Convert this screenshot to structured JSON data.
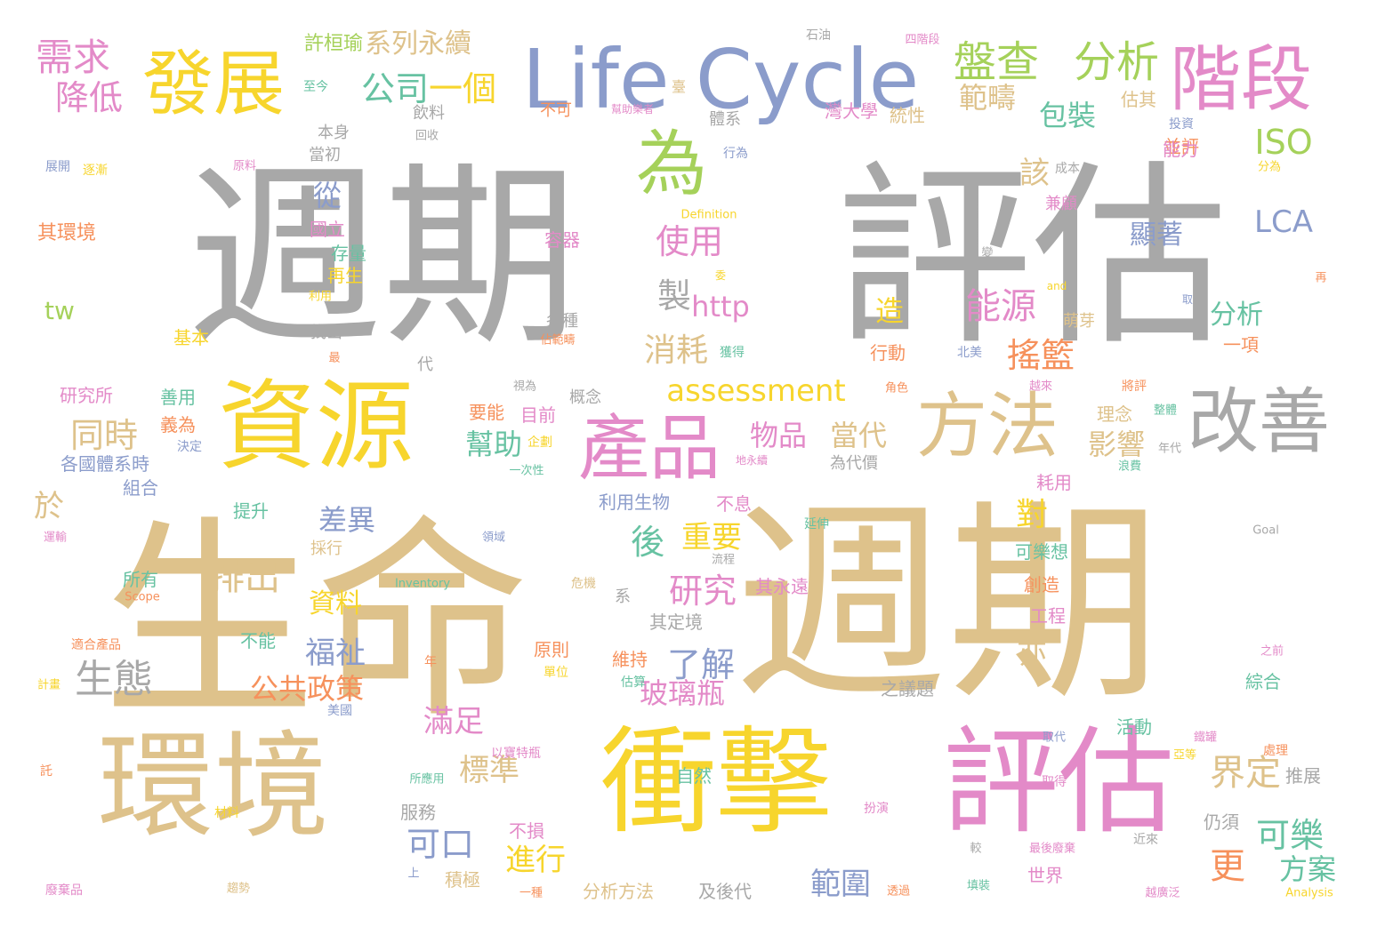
{
  "palette": {
    "tan": "#dec28b",
    "grey": "#a8a8a8",
    "yellow": "#f7d52d",
    "pink": "#e38ac8",
    "blue": "#8b9ccb",
    "green": "#a5d15a",
    "teal": "#67c2a2",
    "orange": "#f6915c"
  },
  "words": [
    {
      "text": "週期",
      "color": "grey",
      "weight": 1.0
    },
    {
      "text": "評估",
      "color": "grey",
      "weight": 1.0
    },
    {
      "text": "生命",
      "color": "tan",
      "weight": 0.98
    },
    {
      "text": "週期",
      "color": "tan",
      "weight": 0.95
    },
    {
      "text": "Life Cycle",
      "color": "blue",
      "weight": 0.55
    },
    {
      "text": "資源",
      "color": "yellow",
      "weight": 0.5
    },
    {
      "text": "環境",
      "color": "tan",
      "weight": 0.62
    },
    {
      "text": "衝擊",
      "color": "yellow",
      "weight": 0.6
    },
    {
      "text": "評估",
      "color": "pink",
      "weight": 0.6
    },
    {
      "text": "產品",
      "color": "pink",
      "weight": 0.35
    },
    {
      "text": "發展",
      "color": "yellow",
      "weight": 0.3
    },
    {
      "text": "階段",
      "color": "pink",
      "weight": 0.3
    },
    {
      "text": "方法",
      "color": "tan",
      "weight": 0.3
    },
    {
      "text": "改善",
      "color": "grey",
      "weight": 0.3
    },
    {
      "text": "為",
      "color": "green",
      "weight": 0.3
    },
    {
      "text": "盤查",
      "color": "green",
      "weight": 0.18
    },
    {
      "text": "分析",
      "color": "green",
      "weight": 0.18
    },
    {
      "text": "需求",
      "color": "pink",
      "weight": 0.16
    },
    {
      "text": "降低",
      "color": "pink",
      "weight": 0.14
    },
    {
      "text": "公司",
      "color": "teal",
      "weight": 0.14
    },
    {
      "text": "一個",
      "color": "yellow",
      "weight": 0.14
    },
    {
      "text": "系列永續",
      "color": "tan",
      "weight": 0.1
    },
    {
      "text": "許桓瑜",
      "color": "green",
      "weight": 0.07
    },
    {
      "text": "範疇",
      "color": "tan",
      "weight": 0.12
    },
    {
      "text": "包裝",
      "color": "teal",
      "weight": 0.12
    },
    {
      "text": "ISO",
      "color": "green",
      "weight": 0.14
    },
    {
      "text": "LCA",
      "color": "blue",
      "weight": 0.12
    },
    {
      "text": "該",
      "color": "tan",
      "weight": 0.12
    },
    {
      "text": "從",
      "color": "blue",
      "weight": 0.12
    },
    {
      "text": "使用",
      "color": "pink",
      "weight": 0.14
    },
    {
      "text": "製",
      "color": "grey",
      "weight": 0.14
    },
    {
      "text": "http",
      "color": "pink",
      "weight": 0.12
    },
    {
      "text": "消耗",
      "color": "tan",
      "weight": 0.14
    },
    {
      "text": "能源",
      "color": "pink",
      "weight": 0.16
    },
    {
      "text": "搖籃",
      "color": "orange",
      "weight": 0.14
    },
    {
      "text": "assessment",
      "color": "yellow",
      "weight": 0.12
    },
    {
      "text": "物品",
      "color": "pink",
      "weight": 0.12
    },
    {
      "text": "當代",
      "color": "tan",
      "weight": 0.12
    },
    {
      "text": "影響",
      "color": "tan",
      "weight": 0.12
    },
    {
      "text": "幫助",
      "color": "teal",
      "weight": 0.12
    },
    {
      "text": "同時",
      "color": "tan",
      "weight": 0.14
    },
    {
      "text": "生態",
      "color": "grey",
      "weight": 0.16
    },
    {
      "text": "差異",
      "color": "blue",
      "weight": 0.12
    },
    {
      "text": "排出",
      "color": "tan",
      "weight": 0.14
    },
    {
      "text": "後",
      "color": "teal",
      "weight": 0.12
    },
    {
      "text": "重要",
      "color": "yellow",
      "weight": 0.12
    },
    {
      "text": "研究",
      "color": "pink",
      "weight": 0.14
    },
    {
      "text": "了解",
      "color": "blue",
      "weight": 0.14
    },
    {
      "text": "福祉",
      "color": "blue",
      "weight": 0.12
    },
    {
      "text": "公共政策",
      "color": "orange",
      "weight": 0.12
    },
    {
      "text": "玻璃瓶",
      "color": "pink",
      "weight": 0.12
    },
    {
      "text": "資料",
      "color": "yellow",
      "weight": 0.1
    },
    {
      "text": "滿足",
      "color": "pink",
      "weight": 0.12
    },
    {
      "text": "標準",
      "color": "tan",
      "weight": 0.12
    },
    {
      "text": "可口",
      "color": "blue",
      "weight": 0.12
    },
    {
      "text": "進行",
      "color": "yellow",
      "weight": 0.12
    },
    {
      "text": "範圍",
      "color": "blue",
      "weight": 0.12
    },
    {
      "text": "界定",
      "color": "tan",
      "weight": 0.14
    },
    {
      "text": "可樂",
      "color": "teal",
      "weight": 0.12
    },
    {
      "text": "方案",
      "color": "teal",
      "weight": 0.12
    },
    {
      "text": "更",
      "color": "orange",
      "weight": 0.14
    },
    {
      "text": "對",
      "color": "yellow",
      "weight": 0.12
    },
    {
      "text": "於",
      "color": "tan",
      "weight": 0.12
    },
    {
      "text": "亦",
      "color": "tan",
      "weight": 0.12
    },
    {
      "text": "造",
      "color": "yellow",
      "weight": 0.12
    },
    {
      "text": "顯著",
      "color": "blue",
      "weight": 0.1
    },
    {
      "text": "分析",
      "color": "teal",
      "weight": 0.1
    },
    {
      "text": "tw",
      "color": "green",
      "weight": 0.09
    },
    {
      "text": "其環境",
      "color": "orange",
      "weight": 0.07
    },
    {
      "text": "本身",
      "color": "grey",
      "weight": 0.06
    },
    {
      "text": "當初",
      "color": "grey",
      "weight": 0.06
    },
    {
      "text": "飲料",
      "color": "grey",
      "weight": 0.06
    },
    {
      "text": "至今",
      "color": "teal",
      "weight": 0.05
    },
    {
      "text": "回收",
      "color": "grey",
      "weight": 0.04
    },
    {
      "text": "體系",
      "color": "grey",
      "weight": 0.06
    },
    {
      "text": "灣大學",
      "color": "pink",
      "weight": 0.06
    },
    {
      "text": "統性",
      "color": "tan",
      "weight": 0.06
    },
    {
      "text": "估其",
      "color": "tan",
      "weight": 0.06
    },
    {
      "text": "不可",
      "color": "orange",
      "weight": 0.06
    },
    {
      "text": "幫助樂者",
      "color": "pink",
      "weight": 0.04
    },
    {
      "text": "臺",
      "color": "tan",
      "weight": 0.05
    },
    {
      "text": "石油",
      "color": "grey",
      "weight": 0.05
    },
    {
      "text": "四階段",
      "color": "pink",
      "weight": 0.04
    },
    {
      "text": "投資",
      "color": "blue",
      "weight": 0.05
    },
    {
      "text": "並評",
      "color": "orange",
      "weight": 0.06
    },
    {
      "text": "能力",
      "color": "pink",
      "weight": 0.06
    },
    {
      "text": "成本",
      "color": "grey",
      "weight": 0.05
    },
    {
      "text": "分為",
      "color": "yellow",
      "weight": 0.04
    },
    {
      "text": "行為",
      "color": "blue",
      "weight": 0.05
    },
    {
      "text": "兼顧",
      "color": "pink",
      "weight": 0.06
    },
    {
      "text": "Definition",
      "color": "yellow",
      "weight": 0.04
    },
    {
      "text": "展開",
      "color": "blue",
      "weight": 0.04
    },
    {
      "text": "逐漸",
      "color": "yellow",
      "weight": 0.04
    },
    {
      "text": "原料",
      "color": "pink",
      "weight": 0.04
    },
    {
      "text": "國立",
      "color": "pink",
      "weight": 0.06
    },
    {
      "text": "容器",
      "color": "pink",
      "weight": 0.06
    },
    {
      "text": "存量",
      "color": "teal",
      "weight": 0.06
    },
    {
      "text": "再生",
      "color": "yellow",
      "weight": 0.06
    },
    {
      "text": "利用",
      "color": "yellow",
      "weight": 0.04
    },
    {
      "text": "基本",
      "color": "yellow",
      "weight": 0.05
    },
    {
      "text": "找出",
      "color": "grey",
      "weight": 0.05
    },
    {
      "text": "最",
      "color": "orange",
      "weight": 0.04
    },
    {
      "text": "各種",
      "color": "grey",
      "weight": 0.05
    },
    {
      "text": "佔範疇",
      "color": "orange",
      "weight": 0.04
    },
    {
      "text": "獲得",
      "color": "teal",
      "weight": 0.04
    },
    {
      "text": "行動",
      "color": "orange",
      "weight": 0.06
    },
    {
      "text": "北美",
      "color": "blue",
      "weight": 0.04
    },
    {
      "text": "萌芽",
      "color": "tan",
      "weight": 0.06
    },
    {
      "text": "一項",
      "color": "orange",
      "weight": 0.05
    },
    {
      "text": "and",
      "color": "yellow",
      "weight": 0.03
    },
    {
      "text": "取",
      "color": "blue",
      "weight": 0.03
    },
    {
      "text": "再",
      "color": "orange",
      "weight": 0.03
    },
    {
      "text": "變",
      "color": "grey",
      "weight": 0.03
    },
    {
      "text": "委",
      "color": "yellow",
      "weight": 0.03
    },
    {
      "text": "研究所",
      "color": "pink",
      "weight": 0.06
    },
    {
      "text": "善用",
      "color": "teal",
      "weight": 0.06
    },
    {
      "text": "義為",
      "color": "orange",
      "weight": 0.06
    },
    {
      "text": "決定",
      "color": "blue",
      "weight": 0.04
    },
    {
      "text": "代",
      "color": "grey",
      "weight": 0.04
    },
    {
      "text": "視為",
      "color": "grey",
      "weight": 0.04
    },
    {
      "text": "概念",
      "color": "grey",
      "weight": 0.05
    },
    {
      "text": "角色",
      "color": "orange",
      "weight": 0.04
    },
    {
      "text": "越來",
      "color": "pink",
      "weight": 0.04
    },
    {
      "text": "將評",
      "color": "orange",
      "weight": 0.04
    },
    {
      "text": "理念",
      "color": "tan",
      "weight": 0.06
    },
    {
      "text": "整體",
      "color": "teal",
      "weight": 0.04
    },
    {
      "text": "要能",
      "color": "orange",
      "weight": 0.06
    },
    {
      "text": "目前",
      "color": "pink",
      "weight": 0.06
    },
    {
      "text": "企劃",
      "color": "yellow",
      "weight": 0.04
    },
    {
      "text": "地永續",
      "color": "pink",
      "weight": 0.03
    },
    {
      "text": "為代價",
      "color": "grey",
      "weight": 0.05
    },
    {
      "text": "年代",
      "color": "grey",
      "weight": 0.04
    },
    {
      "text": "浪費",
      "color": "teal",
      "weight": 0.04
    },
    {
      "text": "各國體系時",
      "color": "blue",
      "weight": 0.06
    },
    {
      "text": "組合",
      "color": "blue",
      "weight": 0.06
    },
    {
      "text": "一次性",
      "color": "teal",
      "weight": 0.04
    },
    {
      "text": "不息",
      "color": "pink",
      "weight": 0.06
    },
    {
      "text": "耗用",
      "color": "pink",
      "weight": 0.06
    },
    {
      "text": "利用生物",
      "color": "blue",
      "weight": 0.06
    },
    {
      "text": "提升",
      "color": "teal",
      "weight": 0.06
    },
    {
      "text": "運輸",
      "color": "pink",
      "weight": 0.04
    },
    {
      "text": "延伸",
      "color": "teal",
      "weight": 0.04
    },
    {
      "text": "領域",
      "color": "blue",
      "weight": 0.04
    },
    {
      "text": "Goal",
      "color": "grey",
      "weight": 0.04
    },
    {
      "text": "採行",
      "color": "tan",
      "weight": 0.05
    },
    {
      "text": "流程",
      "color": "grey",
      "weight": 0.04
    },
    {
      "text": "可樂想",
      "color": "teal",
      "weight": 0.06
    },
    {
      "text": "所有",
      "color": "teal",
      "weight": 0.06
    },
    {
      "text": "Inventory",
      "color": "teal",
      "weight": 0.04
    },
    {
      "text": "危機",
      "color": "tan",
      "weight": 0.04
    },
    {
      "text": "其永遠",
      "color": "pink",
      "weight": 0.06
    },
    {
      "text": "Scope",
      "color": "orange",
      "weight": 0.04
    },
    {
      "text": "系",
      "color": "grey",
      "weight": 0.05
    },
    {
      "text": "創造",
      "color": "orange",
      "weight": 0.06
    },
    {
      "text": "其定境",
      "color": "grey",
      "weight": 0.06
    },
    {
      "text": "工程",
      "color": "pink",
      "weight": 0.06
    },
    {
      "text": "適合產品",
      "color": "orange",
      "weight": 0.05
    },
    {
      "text": "不能",
      "color": "teal",
      "weight": 0.06
    },
    {
      "text": "原則",
      "color": "orange",
      "weight": 0.06
    },
    {
      "text": "維持",
      "color": "orange",
      "weight": 0.06
    },
    {
      "text": "年",
      "color": "orange",
      "weight": 0.04
    },
    {
      "text": "單位",
      "color": "yellow",
      "weight": 0.04
    },
    {
      "text": "估算",
      "color": "teal",
      "weight": 0.04
    },
    {
      "text": "之前",
      "color": "pink",
      "weight": 0.04
    },
    {
      "text": "綜合",
      "color": "teal",
      "weight": 0.06
    },
    {
      "text": "計畫",
      "color": "yellow",
      "weight": 0.04
    },
    {
      "text": "之議題",
      "color": "grey",
      "weight": 0.06
    },
    {
      "text": "美國",
      "color": "blue",
      "weight": 0.05
    },
    {
      "text": "活動",
      "color": "teal",
      "weight": 0.06
    },
    {
      "text": "取代",
      "color": "blue",
      "weight": 0.04
    },
    {
      "text": "鐵罐",
      "color": "pink",
      "weight": 0.04
    },
    {
      "text": "處理",
      "color": "orange",
      "weight": 0.05
    },
    {
      "text": "以寶特瓶",
      "color": "pink",
      "weight": 0.04
    },
    {
      "text": "亞等",
      "color": "yellow",
      "weight": 0.04
    },
    {
      "text": "推展",
      "color": "grey",
      "weight": 0.06
    },
    {
      "text": "所應用",
      "color": "teal",
      "weight": 0.04
    },
    {
      "text": "自然",
      "color": "teal",
      "weight": 0.06
    },
    {
      "text": "取得",
      "color": "pink",
      "weight": 0.05
    },
    {
      "text": "託",
      "color": "orange",
      "weight": 0.04
    },
    {
      "text": "服務",
      "color": "grey",
      "weight": 0.06
    },
    {
      "text": "材料",
      "color": "yellow",
      "weight": 0.04
    },
    {
      "text": "扮演",
      "color": "pink",
      "weight": 0.04
    },
    {
      "text": "仍須",
      "color": "grey",
      "weight": 0.06
    },
    {
      "text": "不損",
      "color": "pink",
      "weight": 0.06
    },
    {
      "text": "近來",
      "color": "grey",
      "weight": 0.04
    },
    {
      "text": "較",
      "color": "grey",
      "weight": 0.04
    },
    {
      "text": "最後廢棄",
      "color": "pink",
      "weight": 0.04
    },
    {
      "text": "上",
      "color": "blue",
      "weight": 0.04
    },
    {
      "text": "積極",
      "color": "tan",
      "weight": 0.06
    },
    {
      "text": "世界",
      "color": "pink",
      "weight": 0.06
    },
    {
      "text": "廢棄品",
      "color": "pink",
      "weight": 0.04
    },
    {
      "text": "趨勢",
      "color": "tan",
      "weight": 0.04
    },
    {
      "text": "一種",
      "color": "orange",
      "weight": 0.04
    },
    {
      "text": "分析方法",
      "color": "tan",
      "weight": 0.06
    },
    {
      "text": "及後代",
      "color": "grey",
      "weight": 0.06
    },
    {
      "text": "透過",
      "color": "orange",
      "weight": 0.04
    },
    {
      "text": "填裝",
      "color": "teal",
      "weight": 0.04
    },
    {
      "text": "越廣泛",
      "color": "pink",
      "weight": 0.04
    },
    {
      "text": "Analysis",
      "color": "yellow",
      "weight": 0.04
    }
  ]
}
